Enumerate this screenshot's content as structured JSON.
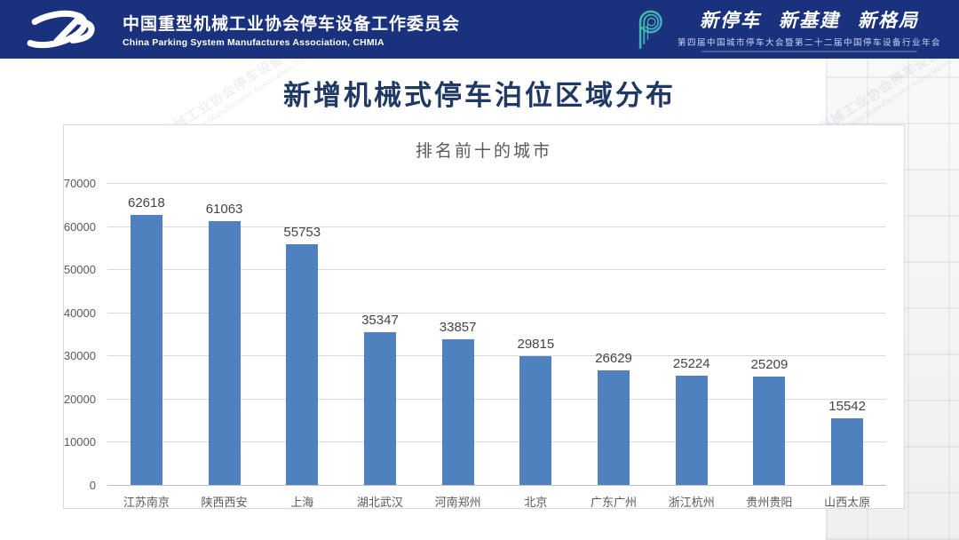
{
  "header": {
    "org_cn": "中国重型机械工业协会停车设备工作委员会",
    "org_en": "China Parking System Manufactures Association, CHMIA",
    "slogan": [
      "新停车",
      "新基建",
      "新格局"
    ],
    "event_line": "第四届中国城市停车大会暨第二十二届中国停车设备行业年会",
    "bg_color": "#1a327e"
  },
  "page_title": "新增机械式停车泊位区域分布",
  "chart_data": {
    "type": "bar",
    "title": "排名前十的城市",
    "categories": [
      "江苏南京",
      "陕西西安",
      "上海",
      "湖北武汉",
      "河南郑州",
      "北京",
      "广东广州",
      "浙江杭州",
      "贵州贵阳",
      "山西太原"
    ],
    "values": [
      62618,
      61063,
      55753,
      35347,
      33857,
      29815,
      26629,
      25224,
      25209,
      15542
    ],
    "title_color": "#595959",
    "xlabel": "",
    "ylabel": "",
    "ylim": [
      0,
      70000
    ],
    "ytick_step": 10000,
    "grid": true,
    "legend_position": "none",
    "data_labels": true,
    "bar_color": "#4E81BD"
  }
}
